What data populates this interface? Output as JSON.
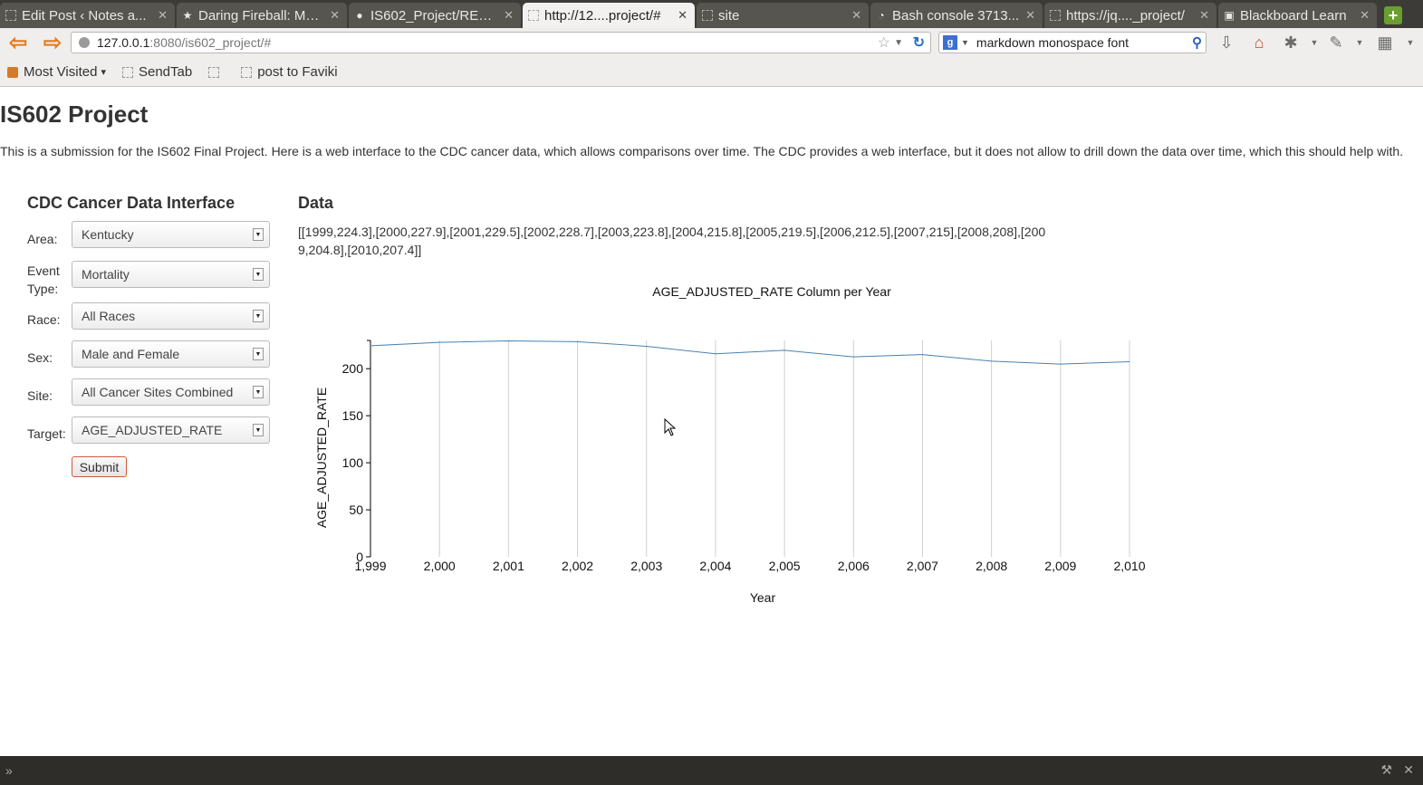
{
  "browser": {
    "tabs": [
      {
        "title": "Edit Post ‹ Notes a...",
        "favicon": "blank-page-icon"
      },
      {
        "title": "Daring Fireball: Ma...",
        "favicon": "star-icon"
      },
      {
        "title": "IS602_Project/REA...",
        "favicon": "github-icon"
      },
      {
        "title": "http://12....project/#",
        "favicon": "blank-page-icon",
        "active": true
      },
      {
        "title": "site",
        "favicon": "blank-page-icon"
      },
      {
        "title": "Bash console 3713...",
        "favicon": "pythonanywhere-icon"
      },
      {
        "title": "https://jq...._project/",
        "favicon": "blank-page-icon"
      },
      {
        "title": "Blackboard Learn",
        "favicon": "blackboard-icon"
      }
    ],
    "url_host": "127.0.0.1",
    "url_rest": ":8080/is602_project/#",
    "search_value": "markdown monospace font",
    "search_engine_letter": "g",
    "bookmarks": [
      {
        "label": "Most Visited",
        "icon": "folder-icon",
        "dropdown": true
      },
      {
        "label": "SendTab",
        "icon": "blank-page-icon"
      },
      {
        "label": "",
        "icon": "blank-page-icon"
      },
      {
        "label": "post to Faviki",
        "icon": "blank-page-icon"
      }
    ]
  },
  "page": {
    "title": "IS602 Project",
    "intro": "This is a submission for the IS602 Final Project. Here is a web interface to the CDC cancer data, which allows comparisons over time. The CDC provides a web interface, but it does not allow to drill down the data over time, which this should help with.",
    "form": {
      "heading": "CDC Cancer Data Interface",
      "fields": [
        {
          "label": "Area:",
          "value": "Kentucky"
        },
        {
          "label": "Event Type:",
          "value": "Mortality"
        },
        {
          "label": "Race:",
          "value": "All Races"
        },
        {
          "label": "Sex:",
          "value": "Male and Female"
        },
        {
          "label": "Site:",
          "value": "All Cancer Sites Combined"
        },
        {
          "label": "Target:",
          "value": "AGE_ADJUSTED_RATE"
        }
      ],
      "submit_label": "Submit"
    },
    "data_heading": "Data",
    "data_string": "[[1999,224.3],[2000,227.9],[2001,229.5],[2002,228.7],[2003,223.8],[2004,215.8],[2005,219.5],[2006,212.5],[2007,215],[2008,208],[2009,204.8],[2010,207.4]]"
  },
  "chart_data": {
    "type": "line",
    "title": "AGE_ADJUSTED_RATE Column per Year",
    "xlabel": "Year",
    "ylabel": "AGE_ADJUSTED_RATE",
    "x": [
      1999,
      2000,
      2001,
      2002,
      2003,
      2004,
      2005,
      2006,
      2007,
      2008,
      2009,
      2010
    ],
    "x_tick_labels": [
      "1,999",
      "2,000",
      "2,001",
      "2,002",
      "2,003",
      "2,004",
      "2,005",
      "2,006",
      "2,007",
      "2,008",
      "2,009",
      "2,010"
    ],
    "y_ticks": [
      0,
      50,
      100,
      150,
      200
    ],
    "ylim": [
      0,
      230
    ],
    "series": [
      {
        "values": [
          224.3,
          227.9,
          229.5,
          228.7,
          223.8,
          215.8,
          219.5,
          212.5,
          215,
          208,
          204.8,
          207.4
        ],
        "color": "#4682b4"
      }
    ],
    "grid": "vertical"
  }
}
